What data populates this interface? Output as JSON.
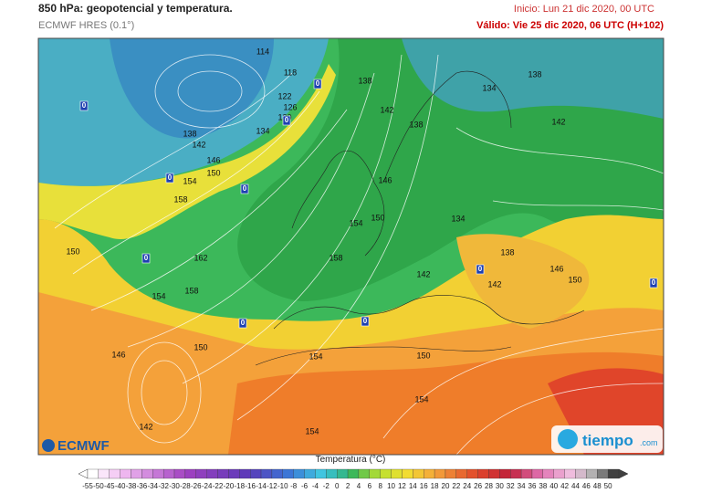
{
  "header": {
    "title": "850 hPa: geopotencial y temperatura.",
    "model": "ECMWF HRES (0.1°)",
    "init": "Inicio: Lun 21 dic 2020, 00 UTC",
    "valid": "Válido: Vie 25 dic 2020, 06 UTC (H+102)"
  },
  "contour_labels": [
    114,
    118,
    122,
    126,
    130,
    138,
    142,
    146,
    150,
    154,
    158,
    134,
    138,
    142,
    138,
    146,
    150,
    154,
    134,
    138,
    134,
    142,
    162,
    150,
    158,
    154,
    158,
    142,
    142,
    138,
    146,
    150,
    146,
    150,
    154,
    150,
    154,
    142,
    154
  ],
  "zero_labels": [
    0,
    0,
    0,
    0,
    0,
    0,
    0,
    0,
    0,
    0
  ],
  "legend": {
    "title": "Temperatura (°C)",
    "ticks": [
      -55,
      -50,
      -45,
      -40,
      -38,
      -36,
      -34,
      -32,
      -30,
      -28,
      -26,
      -24,
      -22,
      -20,
      -18,
      -16,
      -14,
      -12,
      -10,
      -8,
      -6,
      -4,
      -2,
      0,
      2,
      4,
      6,
      8,
      10,
      12,
      14,
      16,
      18,
      20,
      22,
      24,
      26,
      28,
      30,
      32,
      34,
      36,
      38,
      40,
      42,
      44,
      46,
      48,
      50
    ]
  },
  "logos": {
    "ecmwf": "ECMWF",
    "tiempo": "tiempo",
    "tiempo_suffix": ".com"
  }
}
